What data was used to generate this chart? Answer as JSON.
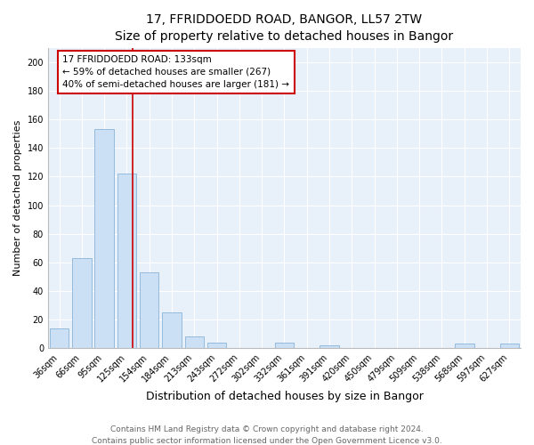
{
  "title": "17, FFRIDDOEDD ROAD, BANGOR, LL57 2TW",
  "subtitle": "Size of property relative to detached houses in Bangor",
  "xlabel": "Distribution of detached houses by size in Bangor",
  "ylabel": "Number of detached properties",
  "categories": [
    "36sqm",
    "66sqm",
    "95sqm",
    "125sqm",
    "154sqm",
    "184sqm",
    "213sqm",
    "243sqm",
    "272sqm",
    "302sqm",
    "332sqm",
    "361sqm",
    "391sqm",
    "420sqm",
    "450sqm",
    "479sqm",
    "509sqm",
    "538sqm",
    "568sqm",
    "597sqm",
    "627sqm"
  ],
  "values": [
    14,
    63,
    153,
    122,
    53,
    25,
    8,
    4,
    0,
    0,
    4,
    0,
    2,
    0,
    0,
    0,
    0,
    0,
    3,
    0,
    3
  ],
  "bar_color": "#cce0f5",
  "bar_edge_color": "#8ab4d8",
  "annotation_text": "17 FFRIDDOEDD ROAD: 133sqm\n← 59% of detached houses are smaller (267)\n40% of semi-detached houses are larger (181) →",
  "annotation_box_color": "#ffffff",
  "annotation_box_edge_color": "#cc0000",
  "vline_color": "#cc0000",
  "ylim": [
    0,
    210
  ],
  "yticks": [
    0,
    20,
    40,
    60,
    80,
    100,
    120,
    140,
    160,
    180,
    200
  ],
  "footer1": "Contains HM Land Registry data © Crown copyright and database right 2024.",
  "footer2": "Contains public sector information licensed under the Open Government Licence v3.0.",
  "title_fontsize": 10,
  "xlabel_fontsize": 9,
  "ylabel_fontsize": 8,
  "tick_fontsize": 7,
  "annotation_fontsize": 7.5,
  "footer_fontsize": 6.5,
  "bg_color": "#e8f0fa"
}
